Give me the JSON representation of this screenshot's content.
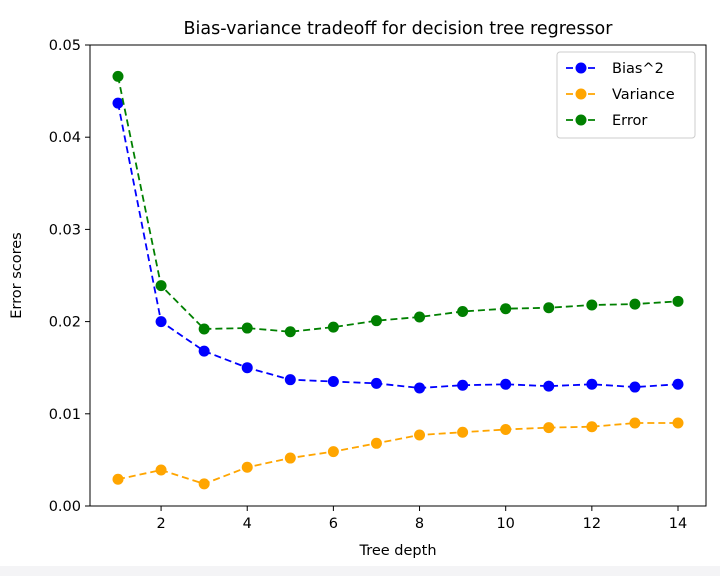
{
  "chart_data": {
    "type": "line",
    "title": "Bias-variance tradeoff for decision tree regressor",
    "xlabel": "Tree depth",
    "ylabel": "Error scores",
    "x": [
      1,
      2,
      3,
      4,
      5,
      6,
      7,
      8,
      9,
      10,
      11,
      12,
      13,
      14
    ],
    "xlim": [
      0.35,
      14.65
    ],
    "ylim": [
      0.0,
      0.05
    ],
    "xticks": [
      2,
      4,
      6,
      8,
      10,
      12,
      14
    ],
    "xtick_labels": [
      "2",
      "4",
      "6",
      "8",
      "10",
      "12",
      "14"
    ],
    "yticks": [
      0.0,
      0.01,
      0.02,
      0.03,
      0.04,
      0.05
    ],
    "ytick_labels": [
      "0.00",
      "0.01",
      "0.02",
      "0.03",
      "0.04",
      "0.05"
    ],
    "grid": false,
    "legend_position": "top-right",
    "series": [
      {
        "name": "Bias^2",
        "color": "#0000ff",
        "linestyle": "dashed",
        "marker": "circle",
        "values": [
          0.0437,
          0.02,
          0.0168,
          0.015,
          0.0137,
          0.0135,
          0.0133,
          0.0128,
          0.0131,
          0.0132,
          0.013,
          0.0132,
          0.0129,
          0.0132
        ]
      },
      {
        "name": "Variance",
        "color": "#ffa500",
        "linestyle": "dashed",
        "marker": "circle",
        "values": [
          0.0029,
          0.0039,
          0.0024,
          0.0042,
          0.0052,
          0.0059,
          0.0068,
          0.0077,
          0.008,
          0.0083,
          0.0085,
          0.0086,
          0.009,
          0.009
        ]
      },
      {
        "name": "Error",
        "color": "#008000",
        "linestyle": "dashed",
        "marker": "circle",
        "values": [
          0.0466,
          0.0239,
          0.0192,
          0.0193,
          0.0189,
          0.0194,
          0.0201,
          0.0205,
          0.0211,
          0.0214,
          0.0215,
          0.0218,
          0.0219,
          0.0222
        ]
      }
    ]
  }
}
